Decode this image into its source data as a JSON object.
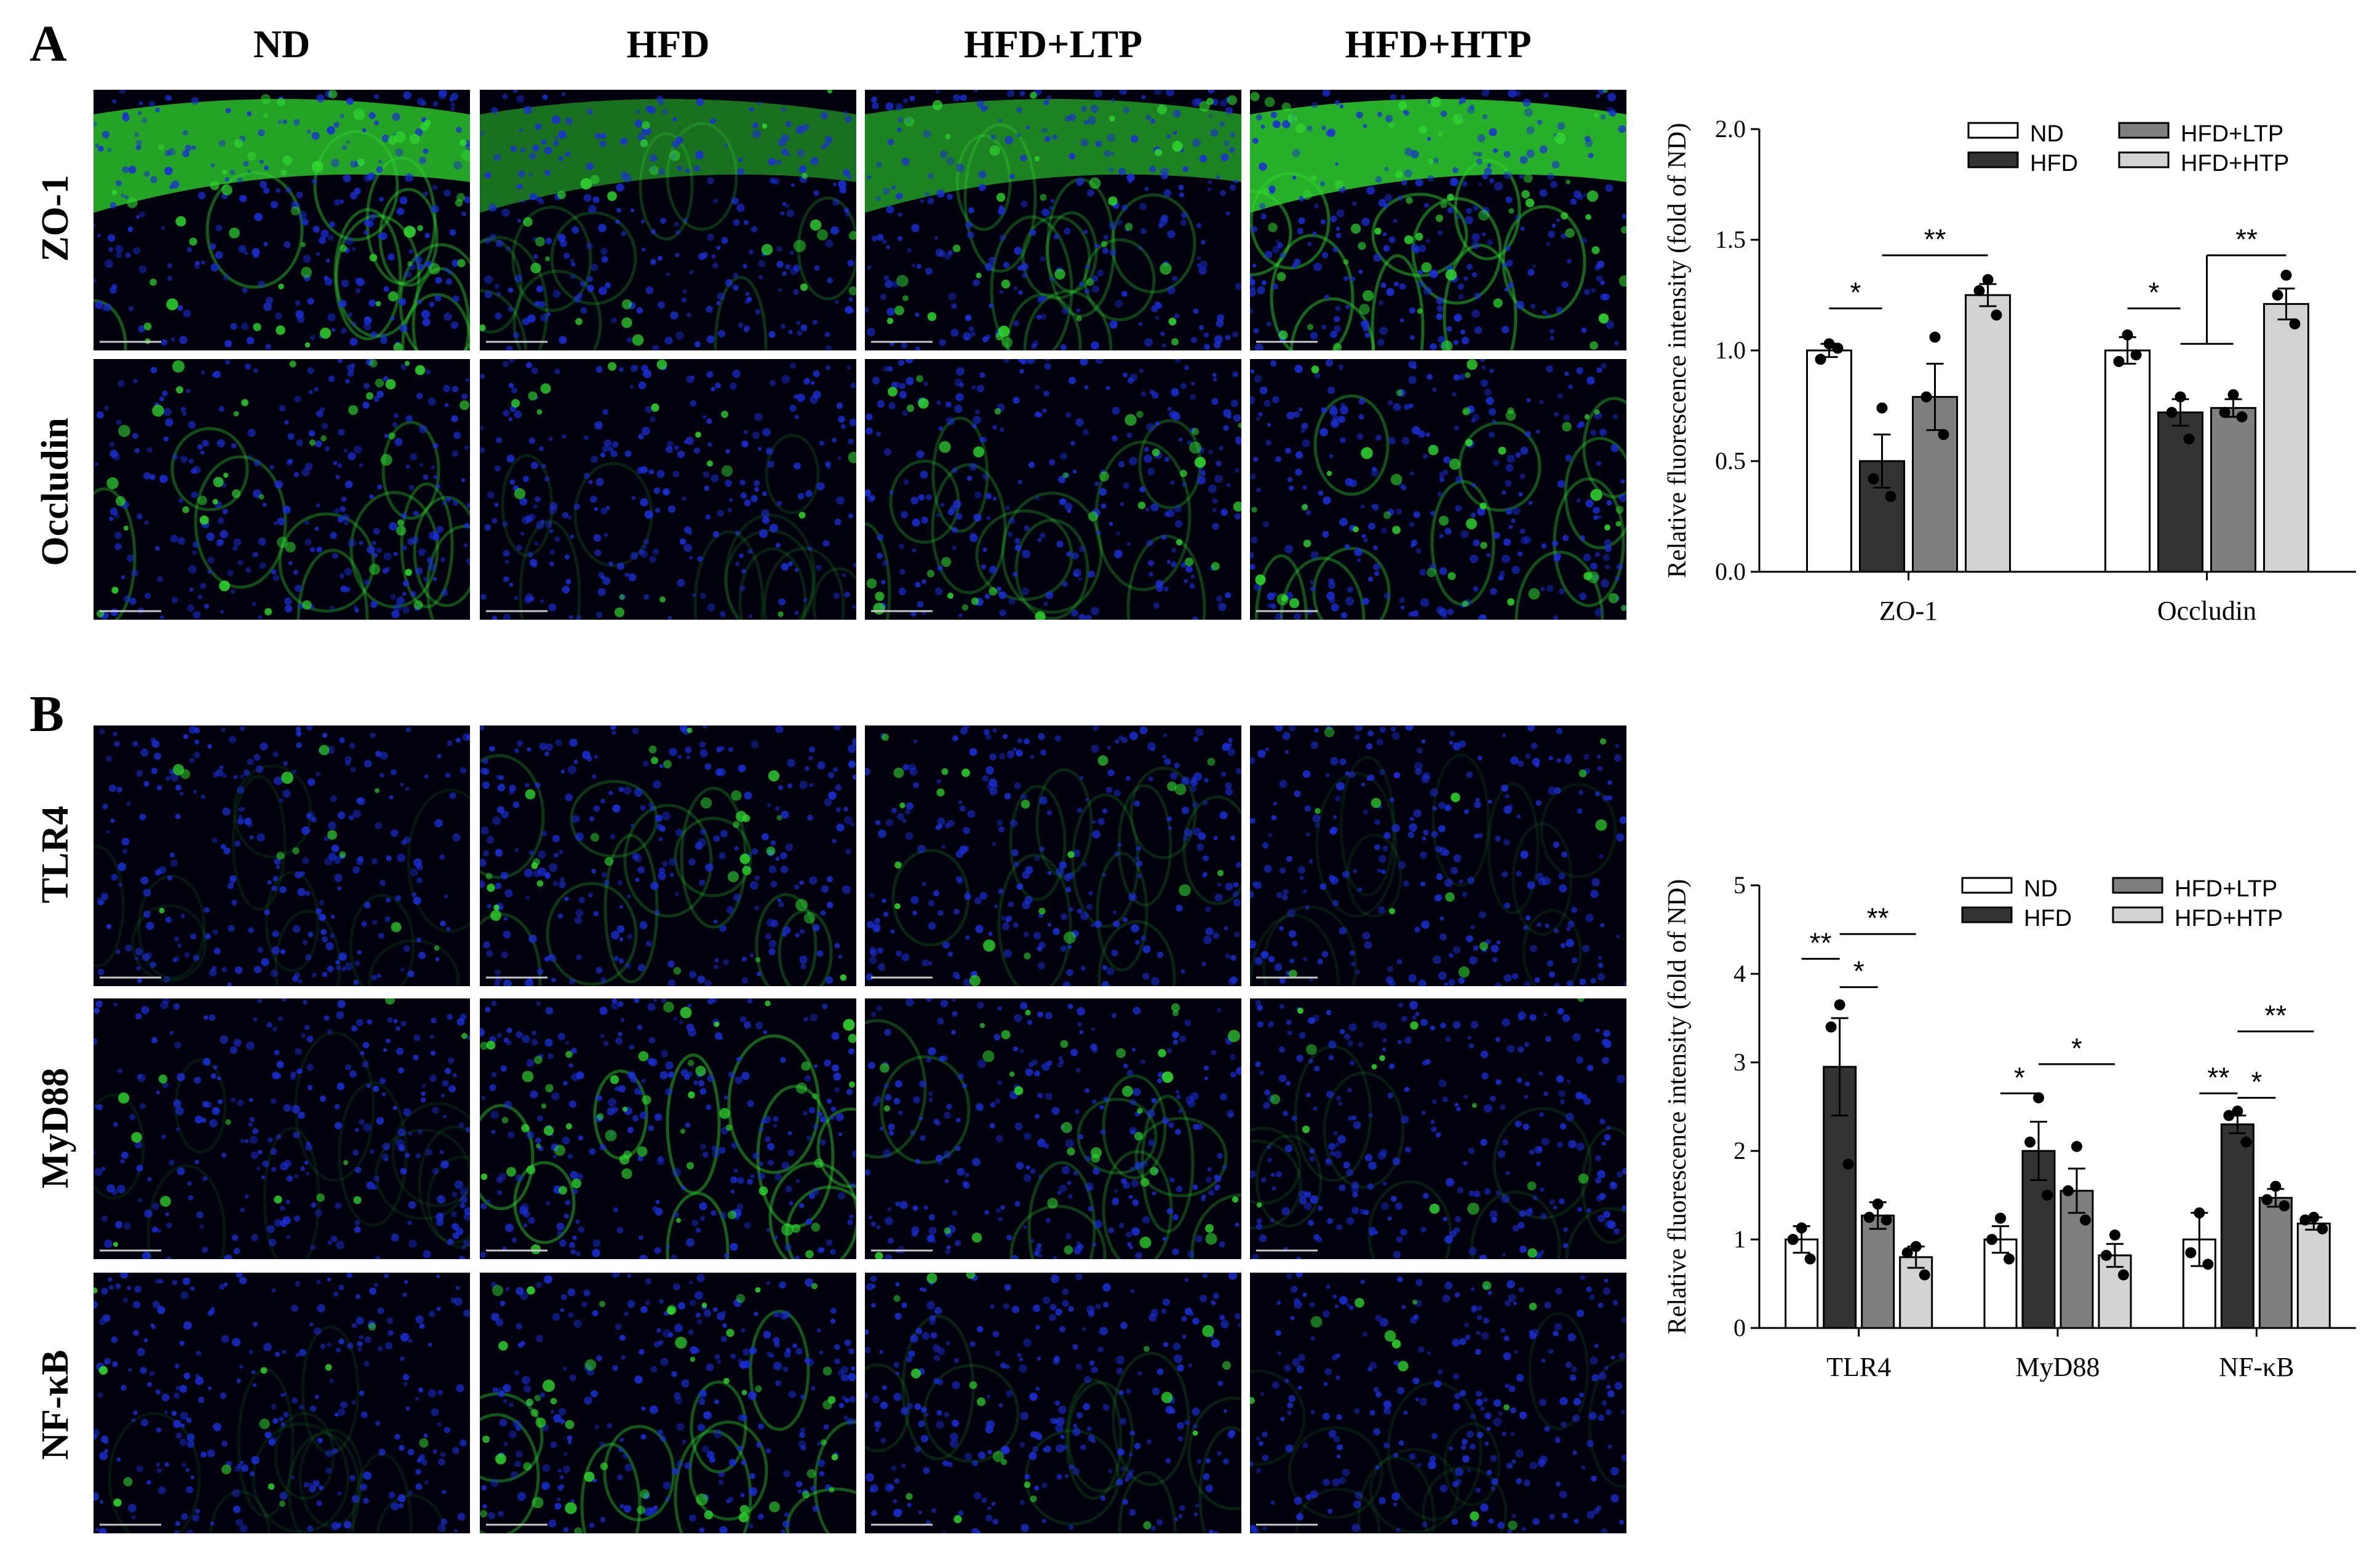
{
  "figure": {
    "panel_a_label": "A",
    "panel_b_label": "B",
    "column_headers": [
      "ND",
      "HFD",
      "HFD+LTP",
      "HFD+HTP"
    ],
    "panel_a_rows": [
      "ZO-1",
      "Occludin"
    ],
    "panel_b_rows": [
      "TLR4",
      "MyD88",
      "NF-κB"
    ]
  },
  "micrographs": {
    "ZO-1": {
      "ND": {
        "green": 0.85
      },
      "HFD": {
        "green": 0.45
      },
      "HFD+LTP": {
        "green": 0.6
      },
      "HFD+HTP": {
        "green": 0.95
      }
    },
    "Occludin": {
      "ND": {
        "green": 0.7
      },
      "HFD": {
        "green": 0.3
      },
      "HFD+LTP": {
        "green": 0.55
      },
      "HFD+HTP": {
        "green": 0.75
      }
    },
    "TLR4": {
      "ND": {
        "green": 0.2
      },
      "HFD": {
        "green": 0.5
      },
      "HFD+LTP": {
        "green": 0.35
      },
      "HFD+HTP": {
        "green": 0.2
      }
    },
    "MyD88": {
      "ND": {
        "green": 0.2
      },
      "HFD": {
        "green": 0.9
      },
      "HFD+LTP": {
        "green": 0.55
      },
      "HFD+HTP": {
        "green": 0.25
      }
    },
    "NF-κB": {
      "ND": {
        "green": 0.2
      },
      "HFD": {
        "green": 0.8
      },
      "HFD+LTP": {
        "green": 0.3
      },
      "HFD+HTP": {
        "green": 0.2
      }
    }
  },
  "colors": {
    "ND": "#ffffff",
    "HFD": "#333333",
    "HFD+LTP": "#7f7f7f",
    "HFD+HTP": "#d3d3d3",
    "nucleus_blue": "#1a2fd6",
    "stain_green": "#2fd62f"
  },
  "chart_data": [
    {
      "type": "bar",
      "ylabel": "Relative fluorescence intensity (fold of ND)",
      "xlabel": "",
      "ylim": [
        0,
        2.0
      ],
      "yticks": [
        "0.0",
        "0.5",
        "1.0",
        "1.5",
        "2.0"
      ],
      "categories": [
        "ZO-1",
        "Occludin"
      ],
      "series": [
        {
          "name": "ND",
          "values": [
            1.0,
            1.0
          ],
          "err": [
            0.03,
            0.06
          ],
          "points": [
            [
              1.03,
              0.96,
              1.01
            ],
            [
              1.07,
              0.95,
              0.98
            ]
          ]
        },
        {
          "name": "HFD",
          "values": [
            0.5,
            0.72
          ],
          "err": [
            0.12,
            0.06
          ],
          "points": [
            [
              0.74,
              0.42,
              0.34
            ],
            [
              0.79,
              0.72,
              0.6
            ]
          ]
        },
        {
          "name": "HFD+LTP",
          "values": [
            0.79,
            0.74
          ],
          "err": [
            0.15,
            0.04
          ],
          "points": [
            [
              1.06,
              0.79,
              0.62
            ],
            [
              0.8,
              0.72,
              0.7
            ]
          ]
        },
        {
          "name": "HFD+HTP",
          "values": [
            1.25,
            1.21
          ],
          "err": [
            0.05,
            0.07
          ],
          "points": [
            [
              1.32,
              1.27,
              1.16
            ],
            [
              1.34,
              1.25,
              1.12
            ]
          ]
        }
      ],
      "legend": "top-right",
      "significance": [
        {
          "cat": 0,
          "from": 0,
          "to": 1,
          "y": 1.19,
          "label": "*"
        },
        {
          "cat": 0,
          "from": 1,
          "to": 3,
          "y": 1.43,
          "label": "**"
        },
        {
          "cat": 1,
          "from": 0,
          "to": 1,
          "y": 1.19,
          "label": "*"
        },
        {
          "cat": 1,
          "from": 1,
          "to": 2,
          "y": 1.03,
          "label": ""
        },
        {
          "cat": 1,
          "from": 1.5,
          "to": 3,
          "y": 1.43,
          "label": "**",
          "drop": 1.03
        }
      ]
    },
    {
      "type": "bar",
      "ylabel": "Relative fluorescence intensity (fold of ND)",
      "xlabel": "",
      "ylim": [
        0,
        5
      ],
      "yticks": [
        "0",
        "1",
        "2",
        "3",
        "4",
        "5"
      ],
      "categories": [
        "TLR4",
        "MyD88",
        "NF-κB"
      ],
      "series": [
        {
          "name": "ND",
          "values": [
            1.0,
            1.0,
            1.0
          ],
          "err": [
            0.15,
            0.15,
            0.3
          ],
          "points": [
            [
              1.13,
              1.0,
              0.78
            ],
            [
              1.24,
              1.0,
              0.78
            ],
            [
              1.3,
              0.85,
              0.72
            ]
          ]
        },
        {
          "name": "HFD",
          "values": [
            2.95,
            2.0,
            2.3
          ],
          "err": [
            0.55,
            0.33,
            0.1
          ],
          "points": [
            [
              3.65,
              3.4,
              1.85
            ],
            [
              2.6,
              2.1,
              1.5
            ],
            [
              2.45,
              2.4,
              2.1
            ]
          ]
        },
        {
          "name": "HFD+LTP",
          "values": [
            1.27,
            1.55,
            1.47
          ],
          "err": [
            0.15,
            0.25,
            0.1
          ],
          "points": [
            [
              1.4,
              1.25,
              1.22
            ],
            [
              2.05,
              1.55,
              1.22
            ],
            [
              1.6,
              1.45,
              1.38
            ]
          ]
        },
        {
          "name": "HFD+HTP",
          "values": [
            0.8,
            0.82,
            1.18
          ],
          "err": [
            0.12,
            0.13,
            0.07
          ],
          "points": [
            [
              0.92,
              0.85,
              0.6
            ],
            [
              1.05,
              0.82,
              0.6
            ],
            [
              1.25,
              1.22,
              1.12
            ]
          ]
        }
      ],
      "legend": "top-right",
      "significance": [
        {
          "cat": 0,
          "from": 0,
          "to": 1,
          "y": 4.17,
          "label": "**"
        },
        {
          "cat": 0,
          "from": 1,
          "to": 3,
          "y": 4.45,
          "label": "**"
        },
        {
          "cat": 0,
          "from": 1,
          "to": 2,
          "y": 3.85,
          "label": "*"
        },
        {
          "cat": 1,
          "from": 0,
          "to": 1,
          "y": 2.65,
          "label": "*"
        },
        {
          "cat": 1,
          "from": 1,
          "to": 3,
          "y": 2.98,
          "label": "*"
        },
        {
          "cat": 2,
          "from": 0,
          "to": 1,
          "y": 2.65,
          "label": "**"
        },
        {
          "cat": 2,
          "from": 1,
          "to": 3,
          "y": 3.35,
          "label": "**"
        },
        {
          "cat": 2,
          "from": 1,
          "to": 2,
          "y": 2.6,
          "label": "*"
        }
      ]
    }
  ]
}
